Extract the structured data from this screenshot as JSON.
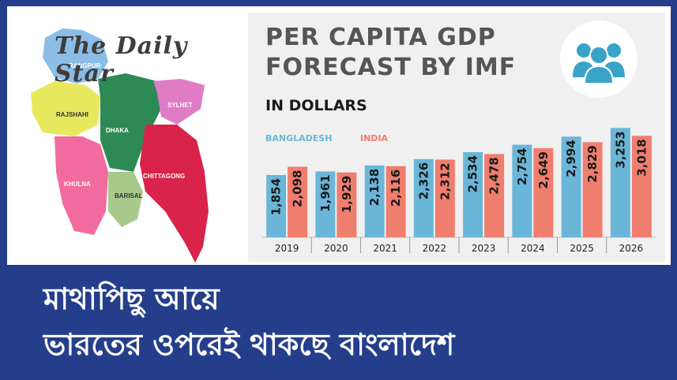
{
  "logo": {
    "text": "The Daily Star"
  },
  "title": {
    "line1": "PER CAPITA GDP",
    "line2": "FORECAST BY IMF",
    "sub": "IN DOLLARS"
  },
  "colors": {
    "bangladesh": "#6ab6d9",
    "india": "#f07e6e",
    "banner": "#253e8c"
  },
  "map": {
    "icon": "bangladesh-map",
    "regions": [
      "RANGPUR",
      "RAJSHAHI",
      "DHAKA",
      "SYLHET",
      "KHULNA",
      "BARISAL",
      "CHITTAGONG"
    ]
  },
  "people_icon": "people-group-icon",
  "chart_data": {
    "type": "bar",
    "title": "PER CAPITA GDP FORECAST BY IMF",
    "subtitle": "IN DOLLARS",
    "categories": [
      "2019",
      "2020",
      "2021",
      "2022",
      "2023",
      "2024",
      "2025",
      "2026"
    ],
    "series": [
      {
        "name": "BANGLADESH",
        "values": [
          1854,
          1961,
          2138,
          2326,
          2534,
          2754,
          2994,
          3253
        ],
        "labels": [
          "1,854",
          "1,961",
          "2,138",
          "2,326",
          "2,534",
          "2,754",
          "2,994",
          "3,253"
        ]
      },
      {
        "name": "INDIA",
        "values": [
          2098,
          1929,
          2116,
          2312,
          2478,
          2649,
          2829,
          3018
        ],
        "labels": [
          "2,098",
          "1,929",
          "2,116",
          "2,312",
          "2,478",
          "2,649",
          "2,829",
          "3,018"
        ]
      }
    ],
    "ylim": [
      0,
      3400
    ],
    "grid": false,
    "legend": "top-left"
  },
  "headline": {
    "line1": "মাথাপিছু আয়ে",
    "line2": "ভারতের ওপরেই থাকছে বাংলাদেশ"
  }
}
